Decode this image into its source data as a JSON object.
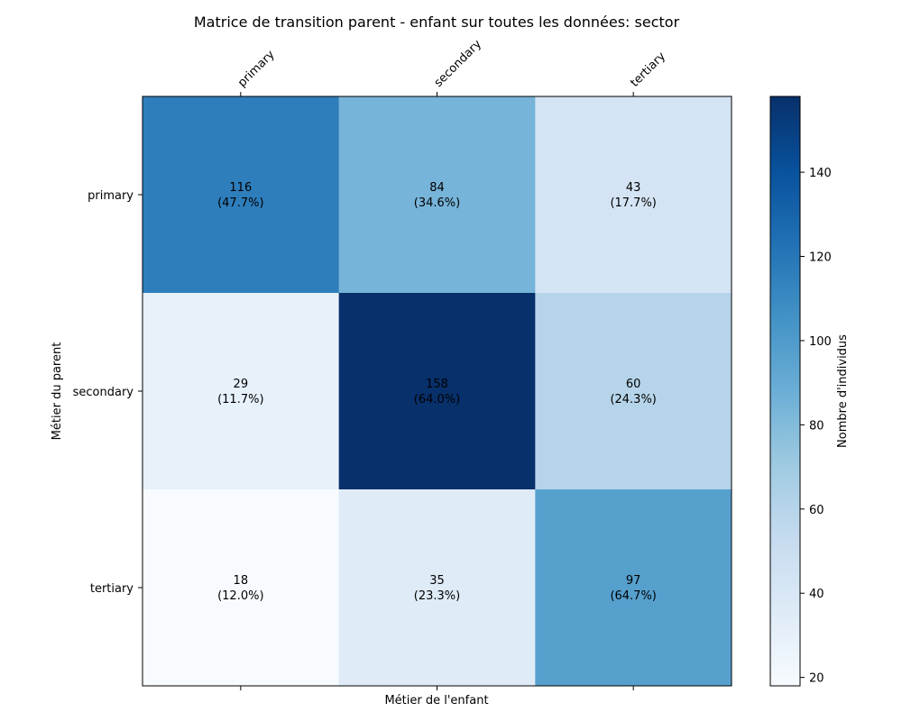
{
  "chart_data": {
    "type": "heatmap",
    "title": "Matrice de transition parent - enfant sur toutes les données: sector",
    "xlabel": "Métier de l'enfant",
    "ylabel": "Métier du parent",
    "x_categories": [
      "primary",
      "secondary",
      "tertiary"
    ],
    "y_categories": [
      "primary",
      "secondary",
      "tertiary"
    ],
    "values": [
      [
        116,
        84,
        43
      ],
      [
        29,
        158,
        60
      ],
      [
        18,
        35,
        97
      ]
    ],
    "percentages": [
      [
        "47.7%",
        "34.6%",
        "17.7%"
      ],
      [
        "11.7%",
        "64.0%",
        "24.3%"
      ],
      [
        "12.0%",
        "23.3%",
        "64.7%"
      ]
    ],
    "colorbar": {
      "label": "Nombre d'individus",
      "range": [
        18,
        158
      ],
      "ticks": [
        20,
        40,
        60,
        80,
        100,
        120,
        140
      ],
      "colormap": "Blues"
    }
  }
}
